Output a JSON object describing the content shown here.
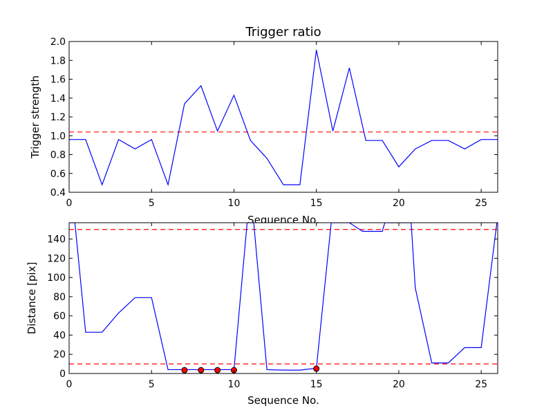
{
  "chart_data": [
    {
      "type": "line",
      "title": "Trigger ratio",
      "xlabel": "Sequence No.",
      "ylabel": "Trigger strength",
      "xlim": [
        0,
        26
      ],
      "ylim": [
        0.4,
        2.0
      ],
      "xticks": [
        "0",
        "5",
        "10",
        "15",
        "20",
        "25"
      ],
      "xtick_values": [
        0,
        5,
        10,
        15,
        20,
        25
      ],
      "yticks": [
        "0.4",
        "0.6",
        "0.8",
        "1.0",
        "1.2",
        "1.4",
        "1.6",
        "1.8",
        "2.0"
      ],
      "ytick_values": [
        0.4,
        0.6,
        0.8,
        1.0,
        1.2,
        1.4,
        1.6,
        1.8,
        2.0
      ],
      "grid": false,
      "line_color": "#0000ff",
      "threshold_color": "#ff0000",
      "series": [
        {
          "x": [
            0,
            1,
            2,
            3,
            4,
            5,
            6,
            7,
            8,
            9,
            10,
            11,
            12,
            13,
            14,
            15,
            16,
            17,
            18,
            19,
            20,
            21,
            22,
            23,
            24,
            25,
            26
          ],
          "values": [
            0.96,
            0.96,
            0.48,
            0.96,
            0.86,
            0.96,
            0.48,
            1.34,
            1.53,
            1.05,
            1.43,
            0.95,
            0.76,
            0.48,
            0.48,
            1.91,
            1.05,
            1.72,
            0.95,
            0.95,
            0.67,
            0.86,
            0.95,
            0.95,
            0.86,
            0.96,
            0.96
          ]
        }
      ],
      "thresholds": [
        1.04
      ]
    },
    {
      "type": "line",
      "title": "",
      "xlabel": "Sequence No.",
      "ylabel": "Distance [pix]",
      "xlim": [
        0,
        26
      ],
      "ylim": [
        0,
        157
      ],
      "xticks": [
        "0",
        "5",
        "10",
        "15",
        "20",
        "25"
      ],
      "xtick_values": [
        0,
        5,
        10,
        15,
        20,
        25
      ],
      "yticks": [
        "0",
        "20",
        "40",
        "60",
        "80",
        "100",
        "120",
        "140"
      ],
      "ytick_values": [
        0,
        20,
        40,
        60,
        80,
        100,
        120,
        140
      ],
      "grid": false,
      "line_color": "#0000ff",
      "threshold_color": "#ff0000",
      "marker_color": "#ff0000",
      "series": [
        {
          "x": [
            0,
            0.35,
            1,
            2,
            3,
            4,
            5,
            6,
            7,
            8,
            9,
            10,
            10.8,
            11.2,
            12,
            13,
            14,
            15,
            15.9,
            17,
            17.8,
            19,
            19.15,
            20.75,
            21,
            22,
            23,
            24,
            25,
            25.95
          ],
          "values": [
            157,
            157,
            43,
            43,
            63,
            79,
            79,
            4,
            4,
            4,
            4,
            4,
            157,
            157,
            4,
            3.5,
            3.5,
            5.5,
            157,
            157,
            148,
            148,
            157,
            157,
            89,
            11,
            11,
            27,
            27,
            157
          ]
        }
      ],
      "markers": {
        "x": [
          7,
          8,
          9,
          10,
          15
        ],
        "y": [
          3.5,
          3.5,
          3.5,
          3.5,
          5
        ]
      },
      "thresholds": [
        150,
        10
      ]
    }
  ]
}
